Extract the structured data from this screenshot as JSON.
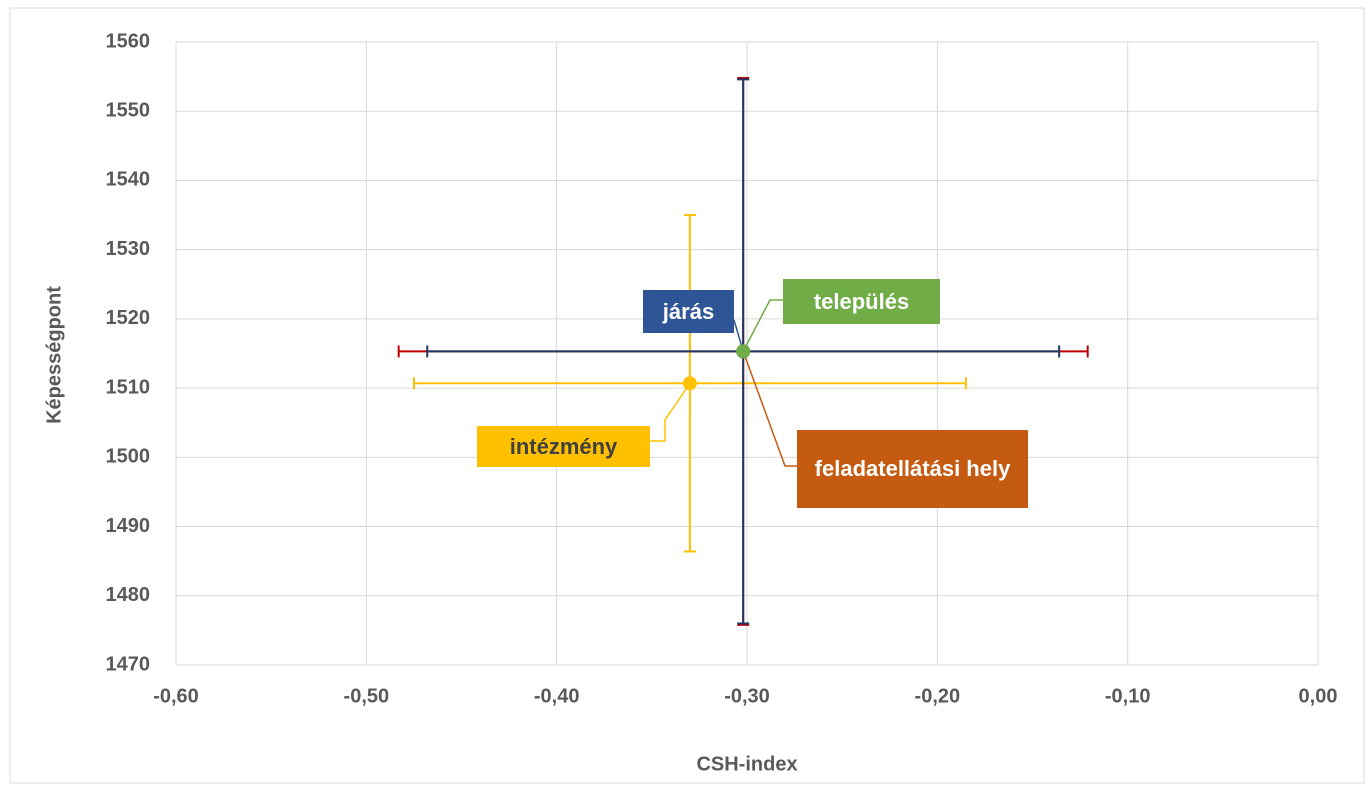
{
  "chart_data": {
    "type": "scatter",
    "x_label": "CSH-index",
    "y_label": "Képességpont",
    "xlim": [
      -0.6,
      0.0
    ],
    "xticks": [
      {
        "value": -0.6,
        "label": "-0,60"
      },
      {
        "value": -0.5,
        "label": "-0,50"
      },
      {
        "value": -0.4,
        "label": "-0,40"
      },
      {
        "value": -0.3,
        "label": "-0,30"
      },
      {
        "value": -0.2,
        "label": "-0,20"
      },
      {
        "value": -0.1,
        "label": "-0,10"
      },
      {
        "value": 0.0,
        "label": "0,00"
      }
    ],
    "ylim": [
      1470,
      1560
    ],
    "yticks": [
      1470,
      1480,
      1490,
      1500,
      1510,
      1520,
      1530,
      1540,
      1550,
      1560
    ],
    "grid": true,
    "series": [
      {
        "name": "intézmény",
        "color": "#ffc000",
        "x": [
          -0.33
        ],
        "values": [
          1510.7
        ],
        "xerr": [
          0.145
        ],
        "yerr": [
          24.3
        ]
      },
      {
        "name": "feladatellátási hely",
        "color": "#c55a11",
        "error_color": "#c00000",
        "x": [
          -0.302
        ],
        "values": [
          1515.3
        ],
        "xerr": [
          0.181
        ],
        "yerr": [
          39.5
        ]
      },
      {
        "name": "járás",
        "color": "#2f5597",
        "error_color": "#1f3864",
        "x": [
          -0.302
        ],
        "values": [
          1515.3
        ],
        "xerr": [
          0.166
        ],
        "yerr": [
          39.3
        ]
      },
      {
        "name": "település",
        "color": "#70ad47",
        "x": [
          -0.302
        ],
        "values": [
          1515.3
        ]
      }
    ]
  }
}
